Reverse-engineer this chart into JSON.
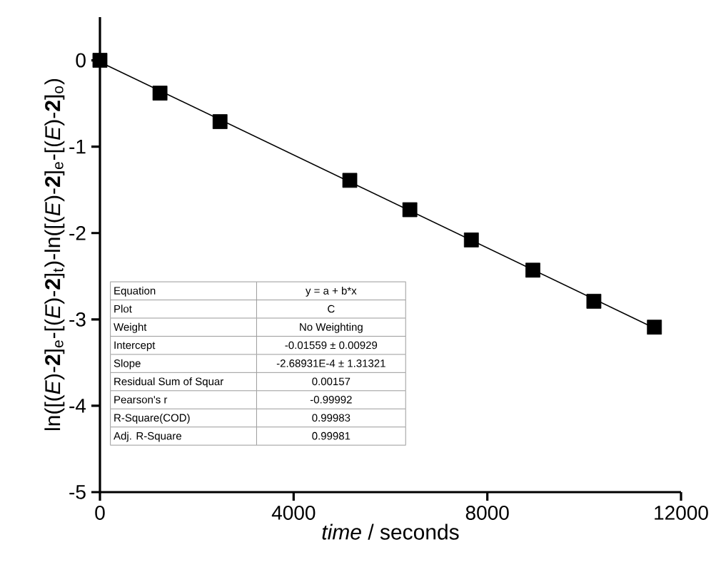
{
  "chart_data": {
    "type": "scatter",
    "xlabel": "*time* / seconds",
    "ylabel": "ln([(*E*)-**2**]$_{e}$-[(*E*)-**2**]$_{t}$)-ln([(*E*)-**2**]$_{e}$-[(*E*)-**2**]$_{o}$)",
    "xlim": [
      0,
      12000
    ],
    "ylim": [
      -5,
      0.5
    ],
    "xticks": [
      0,
      4000,
      8000,
      12000
    ],
    "yticks": [
      -5,
      -4,
      -3,
      -2,
      -1,
      0
    ],
    "marker": "square",
    "series": [
      {
        "type": "scatter",
        "color": "#000000",
        "x": [
          0,
          1240,
          2480,
          5160,
          6400,
          7670,
          8940,
          10200,
          11450
        ],
        "values": [
          0,
          -0.38,
          -0.71,
          -1.39,
          -1.73,
          -2.08,
          -2.43,
          -2.79,
          -3.09
        ]
      },
      {
        "type": "line",
        "color": "#000000",
        "marker": "none",
        "x": [
          0,
          11450
        ],
        "values": [
          -0.02,
          -3.1
        ]
      }
    ],
    "annotations": [
      "Equation",
      "y = a + b*x",
      "Plot",
      "C",
      "Weight",
      "No Weighting",
      "Intercept",
      "-0.01559 ± 0.00929",
      "Slope",
      "-2.68931E-4 ± 1.31321",
      "Residual Sum of Squar",
      "0.00157",
      "Pearson's r",
      "-0.99992",
      "R-Square(COD)",
      "0.99983",
      "Adj. R-Square",
      "0.99981"
    ]
  }
}
